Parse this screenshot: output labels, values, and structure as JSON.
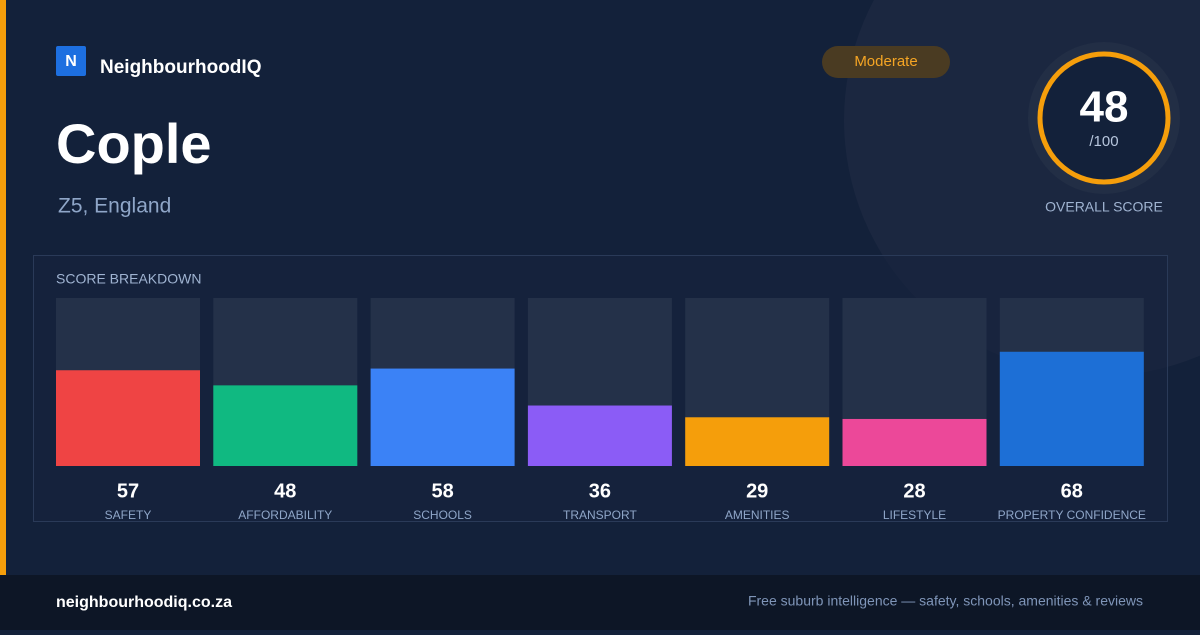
{
  "brand": {
    "logo": "N",
    "name": "NeighbourhoodIQ"
  },
  "place": {
    "name": "Cople",
    "region": "Z5, England"
  },
  "rating": "Moderate",
  "overall": {
    "score": 48,
    "out_of": "/100",
    "label": "OVERALL SCORE"
  },
  "chart_data": {
    "type": "bar",
    "title": "SCORE BREAKDOWN",
    "categories": [
      "SAFETY",
      "AFFORDABILITY",
      "SCHOOLS",
      "TRANSPORT",
      "AMENITIES",
      "LIFESTYLE",
      "PROPERTY CONFIDENCE"
    ],
    "values": [
      57,
      48,
      58,
      36,
      29,
      28,
      68
    ],
    "colors": [
      "#ef4444",
      "#10b981",
      "#3b82f6",
      "#8b5cf6",
      "#f59e0b",
      "#ec4899",
      "#1d6fd6"
    ],
    "ylim": [
      0,
      100
    ]
  },
  "footer": {
    "site": "neighbourhoodiq.co.za",
    "tagline": "Free suburb intelligence — safety, schools, amenities & reviews"
  }
}
